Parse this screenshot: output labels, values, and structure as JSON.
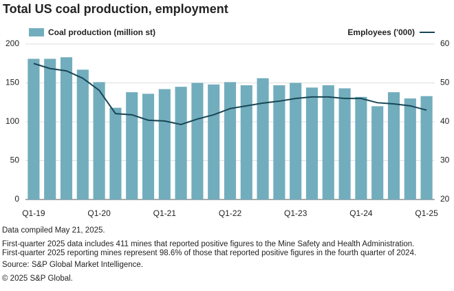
{
  "chart_data": {
    "type": "bar-line",
    "title": "Total US coal production, employment",
    "categories": [
      "Q1-19",
      null,
      null,
      null,
      "Q1-20",
      null,
      null,
      null,
      "Q1-21",
      null,
      null,
      null,
      "Q1-22",
      null,
      null,
      null,
      "Q1-23",
      null,
      null,
      null,
      "Q1-24",
      null,
      null,
      null,
      "Q1-25"
    ],
    "series": [
      {
        "name": "Coal production (million st)",
        "type": "bar",
        "color": "#72adbd",
        "axis": "y",
        "values": [
          181,
          181,
          183,
          167,
          151,
          118,
          138,
          136,
          142,
          145,
          150,
          148,
          151,
          147,
          156,
          147,
          150,
          144,
          147,
          143,
          132,
          120,
          138,
          130,
          133
        ]
      },
      {
        "name": "Employees ('000)",
        "type": "line",
        "color": "#174655",
        "axis": "y2",
        "values": [
          55.0,
          53.7,
          53.1,
          51.2,
          48.1,
          42.1,
          41.8,
          40.4,
          40.2,
          39.3,
          40.7,
          41.8,
          43.4,
          44.1,
          44.8,
          45.3,
          46.0,
          46.4,
          46.4,
          46.0,
          46.0,
          44.9,
          44.6,
          44.1,
          43.0
        ]
      }
    ],
    "ylim": [
      0,
      200
    ],
    "yticks": [
      0,
      50,
      100,
      150,
      200
    ],
    "y2lim": [
      20,
      60
    ],
    "y2ticks": [
      20,
      30,
      40,
      50,
      60
    ],
    "grid": true,
    "notes": [
      "Data compiled May 21, 2025.",
      "First-quarter 2025 data includes 411 mines that reported positive figures to the Mine Safety and Health Administration.",
      "First-quarter 2025 reporting mines represent 98.6% of those that reported positive figures in the fourth quarter of 2024.",
      "Source: S&P Global Market Intelligence.",
      "© 2025 S&P Global."
    ]
  }
}
